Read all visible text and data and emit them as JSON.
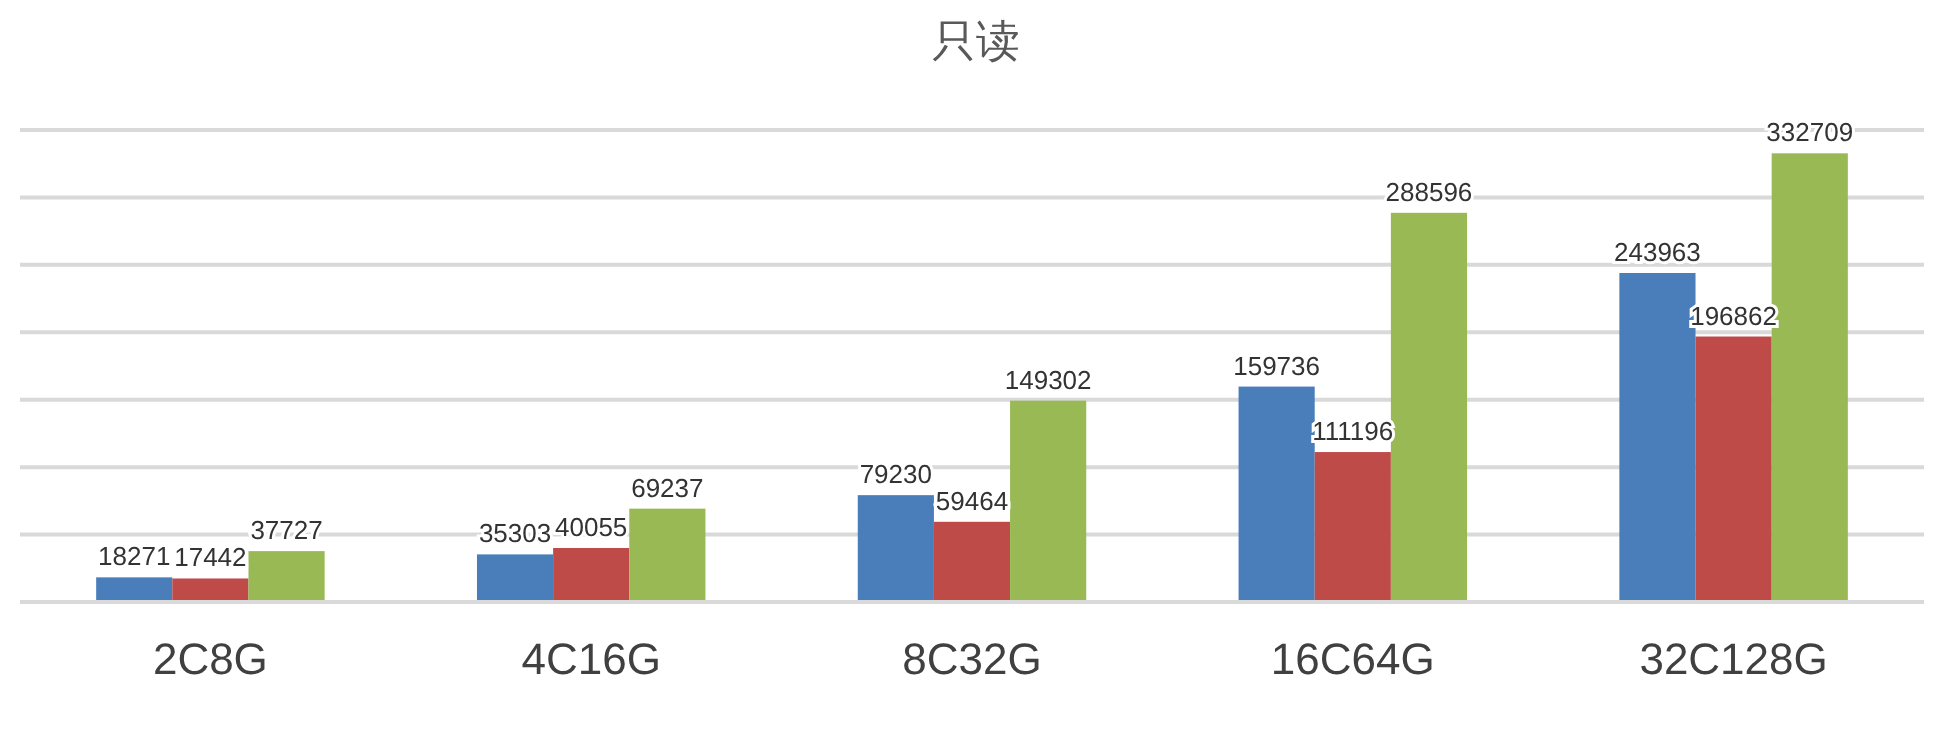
{
  "chart_data": {
    "type": "bar",
    "title": "只读",
    "categories": [
      "2C8G",
      "4C16G",
      "8C32G",
      "16C64G",
      "32C128G"
    ],
    "series": [
      {
        "color": "#4a7ebb",
        "values": [
          18271,
          35303,
          79230,
          159736,
          243963
        ]
      },
      {
        "color": "#be4b48",
        "values": [
          17442,
          40055,
          59464,
          111196,
          196862
        ]
      },
      {
        "color": "#98b954",
        "values": [
          37727,
          69237,
          149302,
          288596,
          332709
        ]
      }
    ],
    "ylim": [
      0,
      350000
    ],
    "yticks": [
      {
        "value": 0,
        "label": null
      },
      {
        "value": 50000,
        "label": null
      },
      {
        "value": 100000,
        "label": null
      },
      {
        "value": 150000,
        "label": null
      },
      {
        "value": 200000,
        "label": null
      },
      {
        "value": 250000,
        "label": null
      },
      {
        "value": 300000,
        "label": null
      },
      {
        "value": 350000,
        "label": null
      }
    ],
    "tick_labels": "x",
    "grid": "y",
    "data_labels": true
  }
}
